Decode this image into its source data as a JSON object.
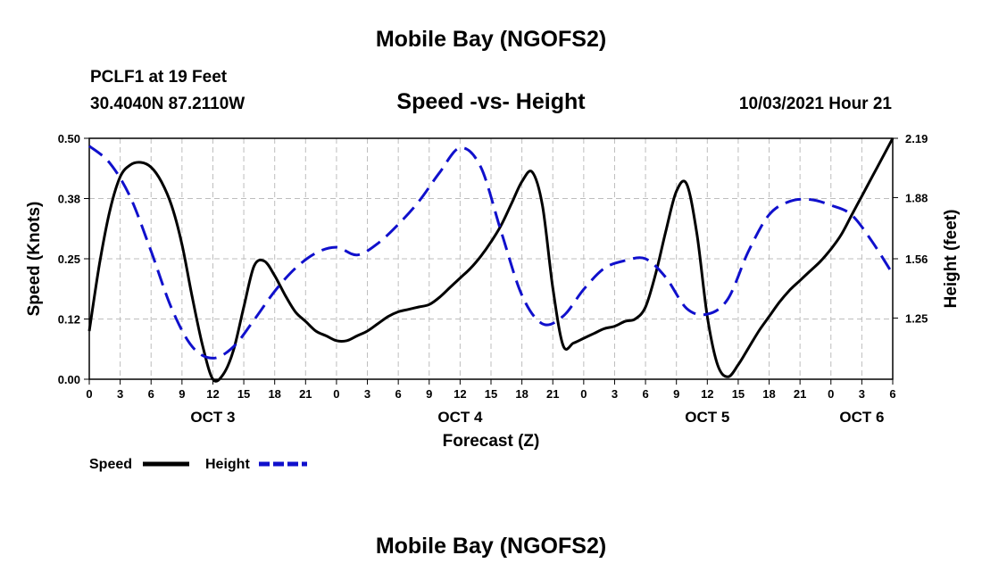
{
  "page": {
    "title_top": "Mobile Bay (NGOFS2)",
    "title_bottom": "Mobile Bay (NGOFS2)",
    "station_line": "PCLF1 at 19 Feet",
    "coords_line": "30.4040N  87.2110W",
    "subtitle": "Speed -vs- Height",
    "datetime": "10/03/2021 Hour 21"
  },
  "chart_data": {
    "type": "line",
    "title": "Speed -vs- Height",
    "xlabel": "Forecast (Z)",
    "ylabel_left": "Speed (Knots)",
    "ylabel_right": "Height (feet)",
    "x_unit": "hours since 10/03/2021 00Z",
    "xlim": [
      0,
      78
    ],
    "ylim_left": [
      0,
      0.5
    ],
    "ylim_right": [
      0.93,
      2.19
    ],
    "grid": true,
    "x_ticks": [
      0,
      3,
      6,
      9,
      12,
      15,
      18,
      21,
      24,
      27,
      30,
      33,
      36,
      39,
      42,
      45,
      48,
      51,
      54,
      57,
      60,
      63,
      66,
      69,
      72,
      75,
      78
    ],
    "x_tick_labels": [
      "0",
      "3",
      "6",
      "9",
      "12",
      "15",
      "18",
      "21",
      "0",
      "3",
      "6",
      "9",
      "12",
      "15",
      "18",
      "21",
      "0",
      "3",
      "6",
      "9",
      "12",
      "15",
      "18",
      "21",
      "0",
      "3",
      "6"
    ],
    "day_labels": [
      {
        "x": 12,
        "label": "OCT 3"
      },
      {
        "x": 36,
        "label": "OCT 4"
      },
      {
        "x": 60,
        "label": "OCT 5"
      },
      {
        "x": 75,
        "label": "OCT 6"
      }
    ],
    "y_left_ticks": [
      0,
      0.125,
      0.25,
      0.375,
      0.5
    ],
    "y_left_tick_labels": [
      "0.00",
      "0.12",
      "0.25",
      "0.38",
      "0.50"
    ],
    "y_right_ticks": [
      1.25,
      1.56,
      1.88,
      2.19
    ],
    "y_right_tick_labels": [
      "1.25",
      "1.56",
      "1.88",
      "2.19"
    ],
    "legend": [
      {
        "name": "Speed",
        "color": "#000000",
        "style": "solid"
      },
      {
        "name": "Height",
        "color": "#1010cc",
        "style": "dashed"
      }
    ],
    "series": [
      {
        "name": "Speed",
        "axis": "left",
        "color": "#000000",
        "x": [
          0,
          1,
          2,
          3,
          4,
          5,
          6,
          7,
          8,
          9,
          10,
          11,
          12,
          13,
          14,
          15,
          16,
          17,
          18,
          19,
          20,
          21,
          22,
          23,
          24,
          25,
          26,
          27,
          28,
          29,
          30,
          31,
          32,
          33,
          34,
          35,
          36,
          37,
          38,
          39,
          40,
          41,
          42,
          43,
          44,
          45,
          46,
          47,
          48,
          49,
          50,
          51,
          52,
          53,
          54,
          55,
          56,
          57,
          58,
          59,
          60,
          61,
          62,
          63,
          64,
          65,
          66,
          67,
          68,
          69,
          70,
          71,
          72,
          73,
          74,
          75,
          76,
          77,
          78
        ],
        "values": [
          0.1,
          0.24,
          0.35,
          0.42,
          0.445,
          0.45,
          0.44,
          0.41,
          0.36,
          0.28,
          0.17,
          0.07,
          0.0,
          0.01,
          0.06,
          0.15,
          0.235,
          0.245,
          0.215,
          0.175,
          0.14,
          0.12,
          0.1,
          0.09,
          0.08,
          0.08,
          0.09,
          0.1,
          0.115,
          0.13,
          0.14,
          0.145,
          0.15,
          0.155,
          0.17,
          0.19,
          0.21,
          0.23,
          0.255,
          0.285,
          0.32,
          0.365,
          0.41,
          0.43,
          0.36,
          0.19,
          0.07,
          0.075,
          0.085,
          0.095,
          0.105,
          0.11,
          0.12,
          0.125,
          0.15,
          0.22,
          0.31,
          0.39,
          0.405,
          0.3,
          0.13,
          0.03,
          0.005,
          0.03,
          0.065,
          0.1,
          0.13,
          0.16,
          0.185,
          0.205,
          0.225,
          0.245,
          0.27,
          0.3,
          0.34,
          0.38,
          0.42,
          0.46,
          0.5
        ]
      },
      {
        "name": "Height",
        "axis": "right",
        "color": "#1010cc",
        "x": [
          0,
          2,
          4,
          6,
          8,
          10,
          12,
          14,
          16,
          18,
          20,
          22,
          24,
          26,
          28,
          30,
          32,
          34,
          36,
          38,
          40,
          42,
          44,
          46,
          48,
          50,
          52,
          54,
          56,
          58,
          60,
          62,
          64,
          66,
          68,
          70,
          72,
          74,
          76,
          78
        ],
        "values": [
          2.15,
          2.06,
          1.88,
          1.6,
          1.3,
          1.1,
          1.04,
          1.1,
          1.24,
          1.39,
          1.51,
          1.59,
          1.62,
          1.58,
          1.64,
          1.74,
          1.86,
          2.01,
          2.14,
          2.04,
          1.7,
          1.37,
          1.22,
          1.26,
          1.4,
          1.51,
          1.55,
          1.56,
          1.46,
          1.3,
          1.27,
          1.35,
          1.6,
          1.79,
          1.86,
          1.87,
          1.84,
          1.79,
          1.65,
          1.48
        ]
      }
    ]
  }
}
